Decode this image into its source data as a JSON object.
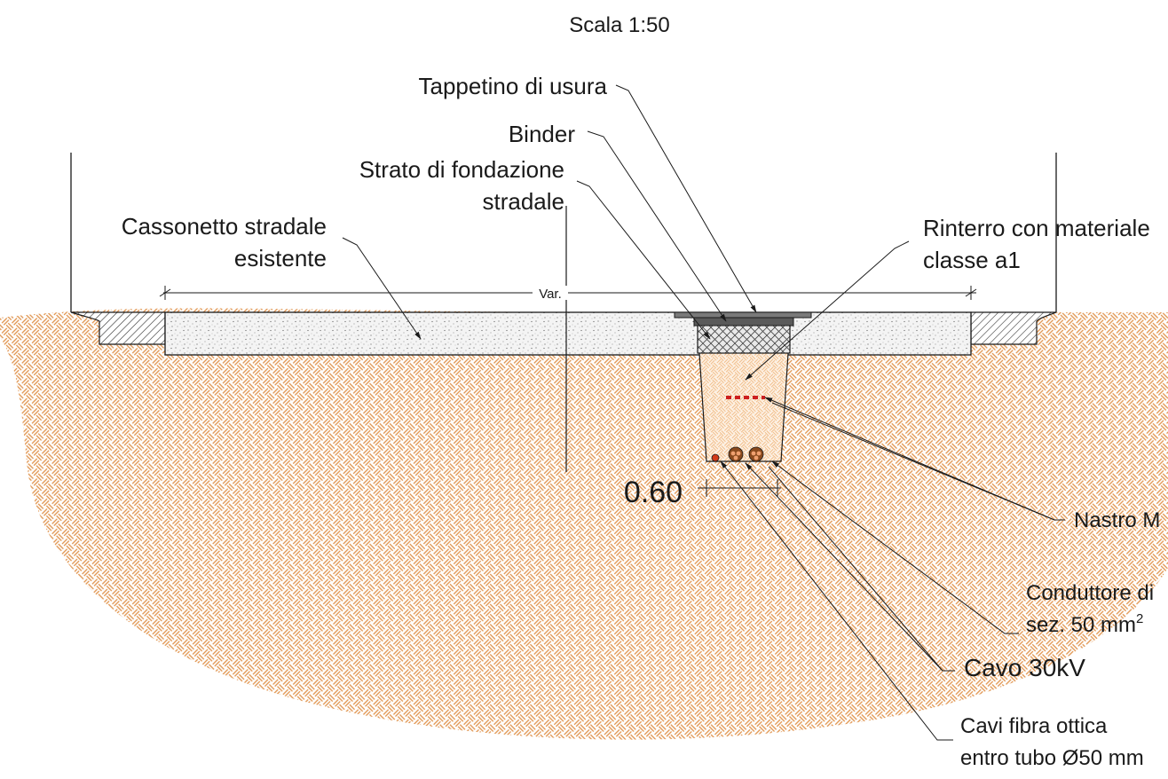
{
  "scale": "Scala 1:50",
  "labels": {
    "tappetino": "Tappetino di usura",
    "binder": "Binder",
    "fondazione_1": "Strato di fondazione",
    "fondazione_2": "stradale",
    "cassonetto_1": "Cassonetto stradale",
    "cassonetto_2": "esistente",
    "rinterro_1": "Rinterro con materiale",
    "rinterro_2": "classe a1",
    "nastro": "Nastro M",
    "conduttore_1": "Conduttore di",
    "conduttore_2": "sez. 50 mm",
    "conduttore_sup": "2",
    "cavo": "Cavo 30kV",
    "fibra_1": "Cavi fibra ottica",
    "fibra_2": "entro tubo Ø50 mm"
  },
  "dimensions": {
    "var": "Var.",
    "trench_width": "0.60"
  },
  "colors": {
    "soil_pattern": "#e0924a",
    "soil_pattern_light": "#f3c89b",
    "line": "#1a1a1a",
    "cable_brown": "#8a4a1e",
    "cable_red": "#d23a1a",
    "tape_red": "#cc1f1f"
  }
}
